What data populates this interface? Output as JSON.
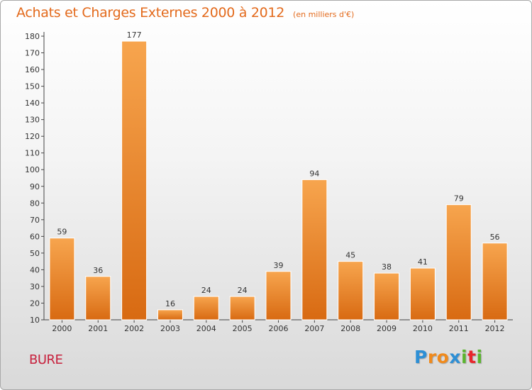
{
  "chart_data": {
    "type": "bar",
    "title": "Achats et Charges Externes 2000 à 2012",
    "subtitle": "(en milliers d'€)",
    "categories": [
      "2000",
      "2001",
      "2002",
      "2003",
      "2004",
      "2005",
      "2006",
      "2007",
      "2008",
      "2009",
      "2010",
      "2011",
      "2012"
    ],
    "values": [
      59,
      36,
      177,
      16,
      24,
      24,
      39,
      94,
      45,
      38,
      41,
      79,
      56
    ],
    "ylim": [
      10,
      180
    ],
    "yticks": [
      10,
      20,
      30,
      40,
      50,
      60,
      70,
      80,
      90,
      100,
      110,
      120,
      130,
      140,
      150,
      160,
      170,
      180
    ],
    "grid": false,
    "bar_color_top": "#f7a54e",
    "bar_color_bottom": "#d86a12"
  },
  "footer": {
    "town": "BURE",
    "logo_letters": [
      "P",
      "r",
      "o",
      "x",
      "i",
      "t",
      "i"
    ],
    "logo_colors": [
      "#2d8fd5",
      "#f08a1c",
      "#f08a1c",
      "#2d8fd5",
      "#5bb52f",
      "#e8262c",
      "#5bb52f"
    ]
  }
}
